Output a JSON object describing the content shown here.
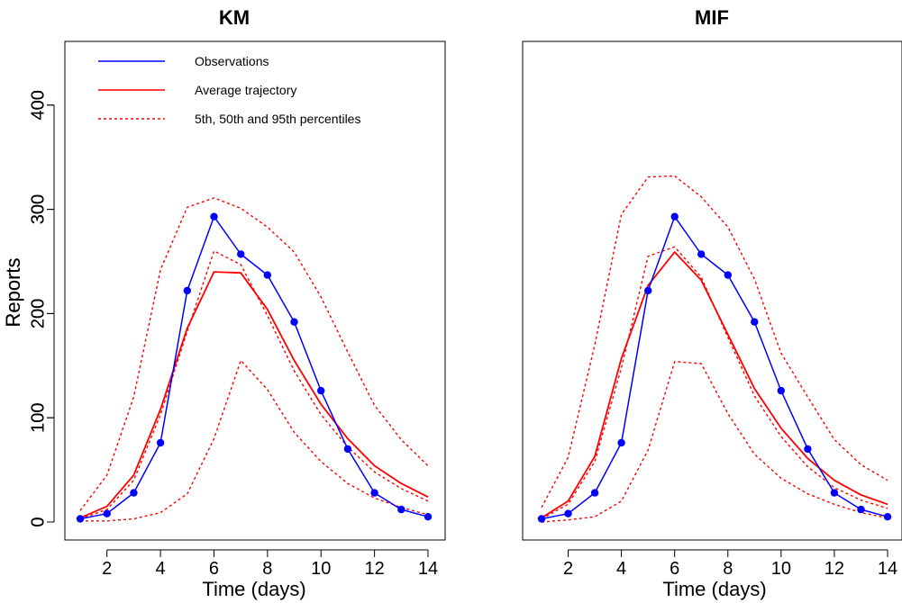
{
  "colors": {
    "observations": "#0000ff",
    "average": "#ff0000",
    "percentiles": "#ff0000",
    "axis": "#000000"
  },
  "legend": {
    "placement": "top-left",
    "entries": [
      {
        "label": "Observations",
        "style": "solid",
        "color": "#0000ff"
      },
      {
        "label": "Average trajectory",
        "style": "solid",
        "color": "#ff0000"
      },
      {
        "label": "5th, 50th and 95th percentiles",
        "style": "dotted",
        "color": "#ff0000"
      }
    ]
  },
  "chart_data": [
    {
      "type": "line",
      "title": "KM",
      "xlabel": "Time (days)",
      "ylabel": "Reports",
      "xlim": [
        1,
        14
      ],
      "ylim": [
        0,
        450
      ],
      "xticks": [
        2,
        4,
        6,
        8,
        10,
        12,
        14
      ],
      "yticks": [
        0,
        100,
        200,
        300,
        400
      ],
      "x": [
        1,
        2,
        3,
        4,
        5,
        6,
        7,
        8,
        9,
        10,
        11,
        12,
        13,
        14
      ],
      "observations": [
        3,
        8,
        28,
        76,
        222,
        293,
        257,
        237,
        192,
        126,
        70,
        28,
        12,
        5
      ],
      "average": [
        4,
        15,
        45,
        108,
        186,
        240,
        239,
        204,
        155,
        113,
        80,
        54,
        37,
        24
      ],
      "p5": [
        1,
        1,
        3,
        9,
        27,
        80,
        155,
        127,
        86,
        58,
        37,
        23,
        14,
        7
      ],
      "p50": [
        3,
        12,
        40,
        103,
        183,
        260,
        247,
        198,
        145,
        103,
        72,
        48,
        32,
        20
      ],
      "p95": [
        11,
        45,
        120,
        242,
        302,
        311,
        301,
        283,
        259,
        216,
        163,
        112,
        79,
        54
      ]
    },
    {
      "type": "line",
      "title": "MIF",
      "xlabel": "Time (days)",
      "ylabel": "Reports",
      "xlim": [
        1,
        14
      ],
      "ylim": [
        0,
        450
      ],
      "xticks": [
        2,
        4,
        6,
        8,
        10,
        12,
        14
      ],
      "yticks": [
        0,
        100,
        200,
        300,
        400
      ],
      "x": [
        1,
        2,
        3,
        4,
        5,
        6,
        7,
        8,
        9,
        10,
        11,
        12,
        13,
        14
      ],
      "observations": [
        3,
        8,
        28,
        76,
        222,
        293,
        257,
        237,
        192,
        126,
        70,
        28,
        12,
        5
      ],
      "average": [
        4,
        20,
        63,
        157,
        227,
        259,
        232,
        180,
        128,
        90,
        61,
        40,
        26,
        17
      ],
      "p5": [
        0,
        2,
        5,
        20,
        69,
        154,
        152,
        104,
        65,
        42,
        27,
        17,
        9,
        4
      ],
      "p50": [
        3,
        17,
        58,
        148,
        255,
        264,
        235,
        177,
        121,
        82,
        53,
        33,
        21,
        13
      ],
      "p95": [
        14,
        62,
        170,
        295,
        331,
        332,
        312,
        283,
        233,
        162,
        120,
        79,
        55,
        40
      ]
    }
  ]
}
